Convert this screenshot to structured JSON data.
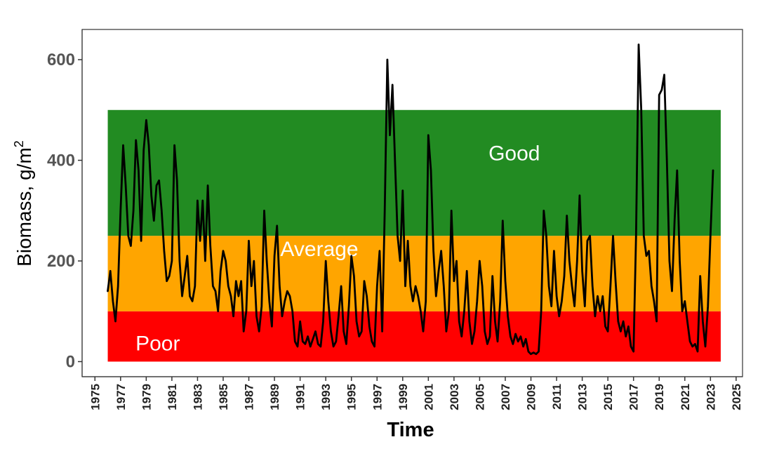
{
  "chart_data": {
    "type": "line",
    "xlabel": "Time",
    "ylabel_main": "Biomass, g/m",
    "ylabel_sup": "2",
    "xlim": [
      1974,
      2025.5
    ],
    "ylim": [
      -30,
      660
    ],
    "yticks": [
      0,
      200,
      400,
      600
    ],
    "ytick_labels": [
      "0",
      "200",
      "400",
      "600"
    ],
    "xticks": [
      1975,
      1977,
      1979,
      1981,
      1983,
      1985,
      1987,
      1989,
      1991,
      1993,
      1995,
      1997,
      1999,
      2001,
      2003,
      2005,
      2007,
      2009,
      2011,
      2013,
      2015,
      2017,
      2019,
      2021,
      2023,
      2025
    ],
    "xtick_labels": [
      "1975",
      "1977",
      "1979",
      "1981",
      "1983",
      "1985",
      "1987",
      "1989",
      "1991",
      "1993",
      "1995",
      "1997",
      "1999",
      "2001",
      "2003",
      "2005",
      "2007",
      "2009",
      "2011",
      "2013",
      "2015",
      "2017",
      "2019",
      "2021",
      "2023",
      "2025"
    ],
    "grid": false,
    "bands": [
      {
        "label": "Poor",
        "ymin": 0,
        "ymax": 100,
        "xmin": 1976.0,
        "xmax": 2023.8,
        "color": "#ff0000",
        "label_x": 1979.9,
        "label_y": 22
      },
      {
        "label": "Average",
        "ymin": 100,
        "ymax": 250,
        "xmin": 1976.0,
        "xmax": 2023.8,
        "color": "#ffa500",
        "label_x": 1992.5,
        "label_y": 210
      },
      {
        "label": "Good",
        "ymin": 250,
        "ymax": 500,
        "xmin": 1976.0,
        "xmax": 2023.8,
        "color": "#228b22",
        "label_x": 2007.7,
        "label_y": 400
      }
    ],
    "series": [
      {
        "color": "#000000",
        "points": [
          [
            1976.0,
            140
          ],
          [
            1976.2,
            180
          ],
          [
            1976.4,
            120
          ],
          [
            1976.6,
            80
          ],
          [
            1976.8,
            150
          ],
          [
            1977.0,
            300
          ],
          [
            1977.2,
            430
          ],
          [
            1977.4,
            350
          ],
          [
            1977.6,
            250
          ],
          [
            1977.8,
            230
          ],
          [
            1978.0,
            300
          ],
          [
            1978.2,
            440
          ],
          [
            1978.4,
            380
          ],
          [
            1978.6,
            240
          ],
          [
            1978.8,
            420
          ],
          [
            1979.0,
            480
          ],
          [
            1979.2,
            430
          ],
          [
            1979.4,
            330
          ],
          [
            1979.6,
            280
          ],
          [
            1979.8,
            350
          ],
          [
            1980.0,
            360
          ],
          [
            1980.2,
            300
          ],
          [
            1980.4,
            220
          ],
          [
            1980.6,
            160
          ],
          [
            1980.8,
            170
          ],
          [
            1981.0,
            200
          ],
          [
            1981.2,
            430
          ],
          [
            1981.4,
            360
          ],
          [
            1981.6,
            200
          ],
          [
            1981.8,
            130
          ],
          [
            1982.0,
            170
          ],
          [
            1982.2,
            210
          ],
          [
            1982.4,
            130
          ],
          [
            1982.6,
            120
          ],
          [
            1982.8,
            150
          ],
          [
            1983.0,
            320
          ],
          [
            1983.2,
            240
          ],
          [
            1983.4,
            320
          ],
          [
            1983.6,
            200
          ],
          [
            1983.8,
            350
          ],
          [
            1984.0,
            230
          ],
          [
            1984.2,
            150
          ],
          [
            1984.4,
            140
          ],
          [
            1984.6,
            100
          ],
          [
            1984.8,
            180
          ],
          [
            1985.0,
            220
          ],
          [
            1985.2,
            200
          ],
          [
            1985.4,
            150
          ],
          [
            1985.6,
            130
          ],
          [
            1985.8,
            90
          ],
          [
            1986.0,
            160
          ],
          [
            1986.2,
            130
          ],
          [
            1986.4,
            160
          ],
          [
            1986.6,
            60
          ],
          [
            1986.8,
            100
          ],
          [
            1987.0,
            240
          ],
          [
            1987.2,
            150
          ],
          [
            1987.4,
            200
          ],
          [
            1987.6,
            90
          ],
          [
            1987.8,
            60
          ],
          [
            1988.0,
            110
          ],
          [
            1988.2,
            300
          ],
          [
            1988.4,
            200
          ],
          [
            1988.6,
            120
          ],
          [
            1988.8,
            70
          ],
          [
            1989.0,
            210
          ],
          [
            1989.2,
            270
          ],
          [
            1989.4,
            150
          ],
          [
            1989.6,
            90
          ],
          [
            1989.8,
            120
          ],
          [
            1990.0,
            140
          ],
          [
            1990.2,
            130
          ],
          [
            1990.4,
            100
          ],
          [
            1990.6,
            40
          ],
          [
            1990.8,
            30
          ],
          [
            1991.0,
            80
          ],
          [
            1991.2,
            40
          ],
          [
            1991.4,
            35
          ],
          [
            1991.6,
            50
          ],
          [
            1991.8,
            30
          ],
          [
            1992.0,
            45
          ],
          [
            1992.2,
            60
          ],
          [
            1992.4,
            35
          ],
          [
            1992.6,
            30
          ],
          [
            1992.8,
            80
          ],
          [
            1993.0,
            200
          ],
          [
            1993.2,
            120
          ],
          [
            1993.4,
            60
          ],
          [
            1993.6,
            30
          ],
          [
            1993.8,
            40
          ],
          [
            1994.0,
            90
          ],
          [
            1994.2,
            150
          ],
          [
            1994.4,
            60
          ],
          [
            1994.6,
            35
          ],
          [
            1994.8,
            110
          ],
          [
            1995.0,
            210
          ],
          [
            1995.2,
            170
          ],
          [
            1995.4,
            80
          ],
          [
            1995.6,
            50
          ],
          [
            1995.8,
            60
          ],
          [
            1996.0,
            160
          ],
          [
            1996.2,
            130
          ],
          [
            1996.4,
            70
          ],
          [
            1996.6,
            40
          ],
          [
            1996.8,
            30
          ],
          [
            1997.0,
            150
          ],
          [
            1997.2,
            220
          ],
          [
            1997.4,
            60
          ],
          [
            1997.6,
            300
          ],
          [
            1997.8,
            600
          ],
          [
            1998.0,
            450
          ],
          [
            1998.2,
            550
          ],
          [
            1998.4,
            400
          ],
          [
            1998.6,
            250
          ],
          [
            1998.8,
            200
          ],
          [
            1999.0,
            340
          ],
          [
            1999.2,
            150
          ],
          [
            1999.4,
            240
          ],
          [
            1999.6,
            150
          ],
          [
            1999.8,
            120
          ],
          [
            2000.0,
            150
          ],
          [
            2000.2,
            130
          ],
          [
            2000.4,
            100
          ],
          [
            2000.6,
            60
          ],
          [
            2000.8,
            120
          ],
          [
            2001.0,
            450
          ],
          [
            2001.2,
            380
          ],
          [
            2001.4,
            220
          ],
          [
            2001.6,
            130
          ],
          [
            2001.8,
            180
          ],
          [
            2002.0,
            220
          ],
          [
            2002.2,
            150
          ],
          [
            2002.4,
            60
          ],
          [
            2002.6,
            100
          ],
          [
            2002.8,
            300
          ],
          [
            2003.0,
            160
          ],
          [
            2003.2,
            200
          ],
          [
            2003.4,
            80
          ],
          [
            2003.6,
            50
          ],
          [
            2003.8,
            100
          ],
          [
            2004.0,
            180
          ],
          [
            2004.2,
            80
          ],
          [
            2004.4,
            35
          ],
          [
            2004.6,
            60
          ],
          [
            2004.8,
            120
          ],
          [
            2005.0,
            200
          ],
          [
            2005.2,
            150
          ],
          [
            2005.4,
            60
          ],
          [
            2005.6,
            35
          ],
          [
            2005.8,
            50
          ],
          [
            2006.0,
            170
          ],
          [
            2006.2,
            80
          ],
          [
            2006.4,
            40
          ],
          [
            2006.6,
            120
          ],
          [
            2006.8,
            280
          ],
          [
            2007.0,
            160
          ],
          [
            2007.2,
            90
          ],
          [
            2007.4,
            50
          ],
          [
            2007.6,
            35
          ],
          [
            2007.8,
            55
          ],
          [
            2008.0,
            40
          ],
          [
            2008.2,
            50
          ],
          [
            2008.4,
            30
          ],
          [
            2008.6,
            45
          ],
          [
            2008.8,
            20
          ],
          [
            2009.0,
            15
          ],
          [
            2009.2,
            18
          ],
          [
            2009.4,
            15
          ],
          [
            2009.6,
            20
          ],
          [
            2009.8,
            100
          ],
          [
            2010.0,
            300
          ],
          [
            2010.2,
            250
          ],
          [
            2010.4,
            150
          ],
          [
            2010.6,
            110
          ],
          [
            2010.8,
            220
          ],
          [
            2011.0,
            130
          ],
          [
            2011.2,
            90
          ],
          [
            2011.4,
            120
          ],
          [
            2011.6,
            170
          ],
          [
            2011.8,
            290
          ],
          [
            2012.0,
            200
          ],
          [
            2012.2,
            150
          ],
          [
            2012.4,
            110
          ],
          [
            2012.6,
            200
          ],
          [
            2012.8,
            330
          ],
          [
            2013.0,
            180
          ],
          [
            2013.2,
            110
          ],
          [
            2013.4,
            240
          ],
          [
            2013.6,
            250
          ],
          [
            2013.8,
            150
          ],
          [
            2014.0,
            90
          ],
          [
            2014.2,
            130
          ],
          [
            2014.4,
            100
          ],
          [
            2014.6,
            130
          ],
          [
            2014.8,
            70
          ],
          [
            2015.0,
            60
          ],
          [
            2015.2,
            150
          ],
          [
            2015.4,
            250
          ],
          [
            2015.6,
            160
          ],
          [
            2015.8,
            80
          ],
          [
            2016.0,
            60
          ],
          [
            2016.2,
            80
          ],
          [
            2016.4,
            50
          ],
          [
            2016.6,
            70
          ],
          [
            2016.8,
            30
          ],
          [
            2017.0,
            20
          ],
          [
            2017.2,
            250
          ],
          [
            2017.4,
            630
          ],
          [
            2017.6,
            500
          ],
          [
            2017.8,
            250
          ],
          [
            2018.0,
            210
          ],
          [
            2018.2,
            220
          ],
          [
            2018.4,
            150
          ],
          [
            2018.6,
            120
          ],
          [
            2018.8,
            80
          ],
          [
            2019.0,
            530
          ],
          [
            2019.2,
            540
          ],
          [
            2019.4,
            570
          ],
          [
            2019.6,
            400
          ],
          [
            2019.8,
            200
          ],
          [
            2020.0,
            140
          ],
          [
            2020.2,
            280
          ],
          [
            2020.4,
            380
          ],
          [
            2020.6,
            200
          ],
          [
            2020.8,
            100
          ],
          [
            2021.0,
            120
          ],
          [
            2021.2,
            80
          ],
          [
            2021.4,
            40
          ],
          [
            2021.6,
            30
          ],
          [
            2021.8,
            35
          ],
          [
            2022.0,
            20
          ],
          [
            2022.2,
            170
          ],
          [
            2022.4,
            80
          ],
          [
            2022.6,
            30
          ],
          [
            2022.8,
            110
          ],
          [
            2023.0,
            250
          ],
          [
            2023.2,
            380
          ]
        ]
      }
    ]
  }
}
